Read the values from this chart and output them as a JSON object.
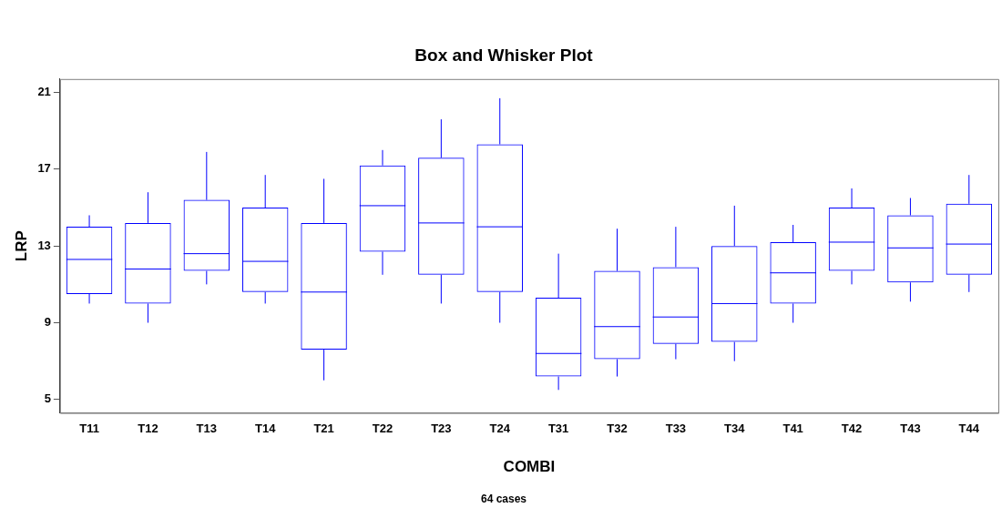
{
  "chart_data": {
    "type": "box",
    "title": "Box and Whisker Plot",
    "xlabel": "COMBI",
    "ylabel": "LRP",
    "annotations": [
      "64 cases"
    ],
    "categories": [
      "T11",
      "T12",
      "T13",
      "T14",
      "T21",
      "T22",
      "T23",
      "T24",
      "T31",
      "T32",
      "T33",
      "T34",
      "T41",
      "T42",
      "T43",
      "T44"
    ],
    "ylim": [
      4.3,
      21.7
    ],
    "yticks": [
      5,
      9,
      13,
      17,
      21
    ],
    "grid": false,
    "legend": false,
    "series": [
      {
        "color": "#0000ff",
        "boxes": [
          {
            "low": 10.0,
            "q1": 10.5,
            "median": 12.3,
            "q3": 14.0,
            "high": 14.6
          },
          {
            "low": 9.0,
            "q1": 10.0,
            "median": 11.8,
            "q3": 14.2,
            "high": 15.8
          },
          {
            "low": 11.0,
            "q1": 11.7,
            "median": 12.6,
            "q3": 15.4,
            "high": 17.9
          },
          {
            "low": 10.0,
            "q1": 10.6,
            "median": 12.2,
            "q3": 15.0,
            "high": 16.7
          },
          {
            "low": 6.0,
            "q1": 7.6,
            "median": 10.6,
            "q3": 14.2,
            "high": 16.5
          },
          {
            "low": 11.5,
            "q1": 12.7,
            "median": 15.1,
            "q3": 17.2,
            "high": 18.0
          },
          {
            "low": 10.0,
            "q1": 11.5,
            "median": 14.2,
            "q3": 17.6,
            "high": 19.6
          },
          {
            "low": 9.0,
            "q1": 10.6,
            "median": 14.0,
            "q3": 18.3,
            "high": 20.7
          },
          {
            "low": 5.5,
            "q1": 6.2,
            "median": 7.4,
            "q3": 10.3,
            "high": 12.6
          },
          {
            "low": 6.2,
            "q1": 7.1,
            "median": 8.8,
            "q3": 11.7,
            "high": 13.9
          },
          {
            "low": 7.1,
            "q1": 7.9,
            "median": 9.3,
            "q3": 11.9,
            "high": 14.0
          },
          {
            "low": 7.0,
            "q1": 8.0,
            "median": 10.0,
            "q3": 13.0,
            "high": 15.1
          },
          {
            "low": 9.0,
            "q1": 10.0,
            "median": 11.6,
            "q3": 13.2,
            "high": 14.1
          },
          {
            "low": 11.0,
            "q1": 11.7,
            "median": 13.2,
            "q3": 15.0,
            "high": 16.0
          },
          {
            "low": 10.1,
            "q1": 11.1,
            "median": 12.9,
            "q3": 14.6,
            "high": 15.5
          },
          {
            "low": 10.6,
            "q1": 11.5,
            "median": 13.1,
            "q3": 15.2,
            "high": 16.7
          }
        ]
      }
    ]
  }
}
